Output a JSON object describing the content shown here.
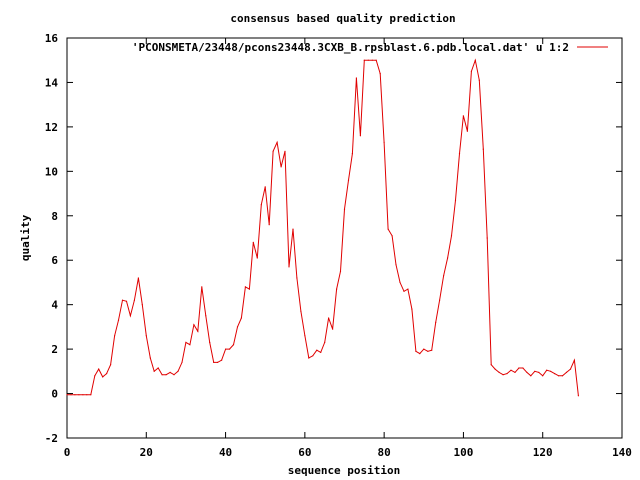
{
  "chart_data": {
    "type": "line",
    "title": "consensus based quality prediction",
    "xlabel": "sequence position",
    "ylabel": "quality",
    "xlim": [
      0,
      140
    ],
    "ylim": [
      -2,
      16
    ],
    "xticks": [
      0,
      20,
      40,
      60,
      80,
      100,
      120,
      140
    ],
    "yticks": [
      -2,
      0,
      2,
      4,
      6,
      8,
      10,
      12,
      14,
      16
    ],
    "grid": false,
    "legend_position": "top-right",
    "series": [
      {
        "name": "'PCONSMETA/23448/pcons23448.3CXB_B.rpsblast.6.pdb.local.dat' u 1:2",
        "color": "#e00000",
        "x": [
          0,
          1,
          2,
          3,
          4,
          5,
          6,
          7,
          8,
          9,
          10,
          11,
          12,
          13,
          14,
          15,
          16,
          17,
          18,
          19,
          20,
          21,
          22,
          23,
          24,
          25,
          26,
          27,
          28,
          29,
          30,
          31,
          32,
          33,
          34,
          35,
          36,
          37,
          38,
          39,
          40,
          41,
          42,
          43,
          44,
          45,
          46,
          47,
          48,
          49,
          50,
          51,
          52,
          53,
          54,
          55,
          56,
          57,
          58,
          59,
          60,
          61,
          62,
          63,
          64,
          65,
          66,
          67,
          68,
          69,
          70,
          71,
          72,
          73,
          74,
          75,
          76,
          77,
          78,
          79,
          80,
          81,
          82,
          83,
          84,
          85,
          86,
          87,
          88,
          89,
          90,
          91,
          92,
          93,
          94,
          95,
          96,
          97,
          98,
          99,
          100,
          101,
          102,
          103,
          104,
          105,
          106,
          107,
          108,
          109,
          110,
          111,
          112,
          113,
          114,
          115,
          116,
          117,
          118,
          119,
          120,
          121,
          122,
          123,
          124,
          125,
          126,
          127,
          128,
          129
        ],
        "y": [
          -0.05,
          -0.05,
          -0.05,
          -0.05,
          -0.05,
          -0.05,
          -0.05,
          0.8,
          1.1,
          0.75,
          0.9,
          1.3,
          2.6,
          3.3,
          4.2,
          4.15,
          3.5,
          4.2,
          5.2,
          4.0,
          2.6,
          1.6,
          1.0,
          1.15,
          0.85,
          0.85,
          0.95,
          0.85,
          1.0,
          1.4,
          2.3,
          2.2,
          3.1,
          2.8,
          4.8,
          3.5,
          2.3,
          1.4,
          1.4,
          1.5,
          2.0,
          2.0,
          2.2,
          3.0,
          3.4,
          4.8,
          4.7,
          6.8,
          6.1,
          8.5,
          9.3,
          7.6,
          10.9,
          11.3,
          10.2,
          10.9,
          5.7,
          7.4,
          5.2,
          3.7,
          2.6,
          1.6,
          1.7,
          1.95,
          1.85,
          2.3,
          3.4,
          2.9,
          4.7,
          5.5,
          8.3,
          9.6,
          10.8,
          14.2,
          11.6,
          15.0,
          15.0,
          15.0,
          15.0,
          14.4,
          11.3,
          7.4,
          7.1,
          5.8,
          5.0,
          4.6,
          4.7,
          3.8,
          1.9,
          1.8,
          2.0,
          1.9,
          1.95,
          3.2,
          4.2,
          5.3,
          6.1,
          7.1,
          8.7,
          10.8,
          12.5,
          11.8,
          14.5,
          15.0,
          14.1,
          11.0,
          7.0,
          1.3,
          1.1,
          0.95,
          0.85,
          0.9,
          1.05,
          0.95,
          1.15,
          1.15,
          0.95,
          0.8,
          1.0,
          0.95,
          0.8,
          1.05,
          1.0,
          0.9,
          0.8,
          0.8,
          0.95,
          1.1,
          1.5,
          -0.1
        ]
      }
    ]
  }
}
